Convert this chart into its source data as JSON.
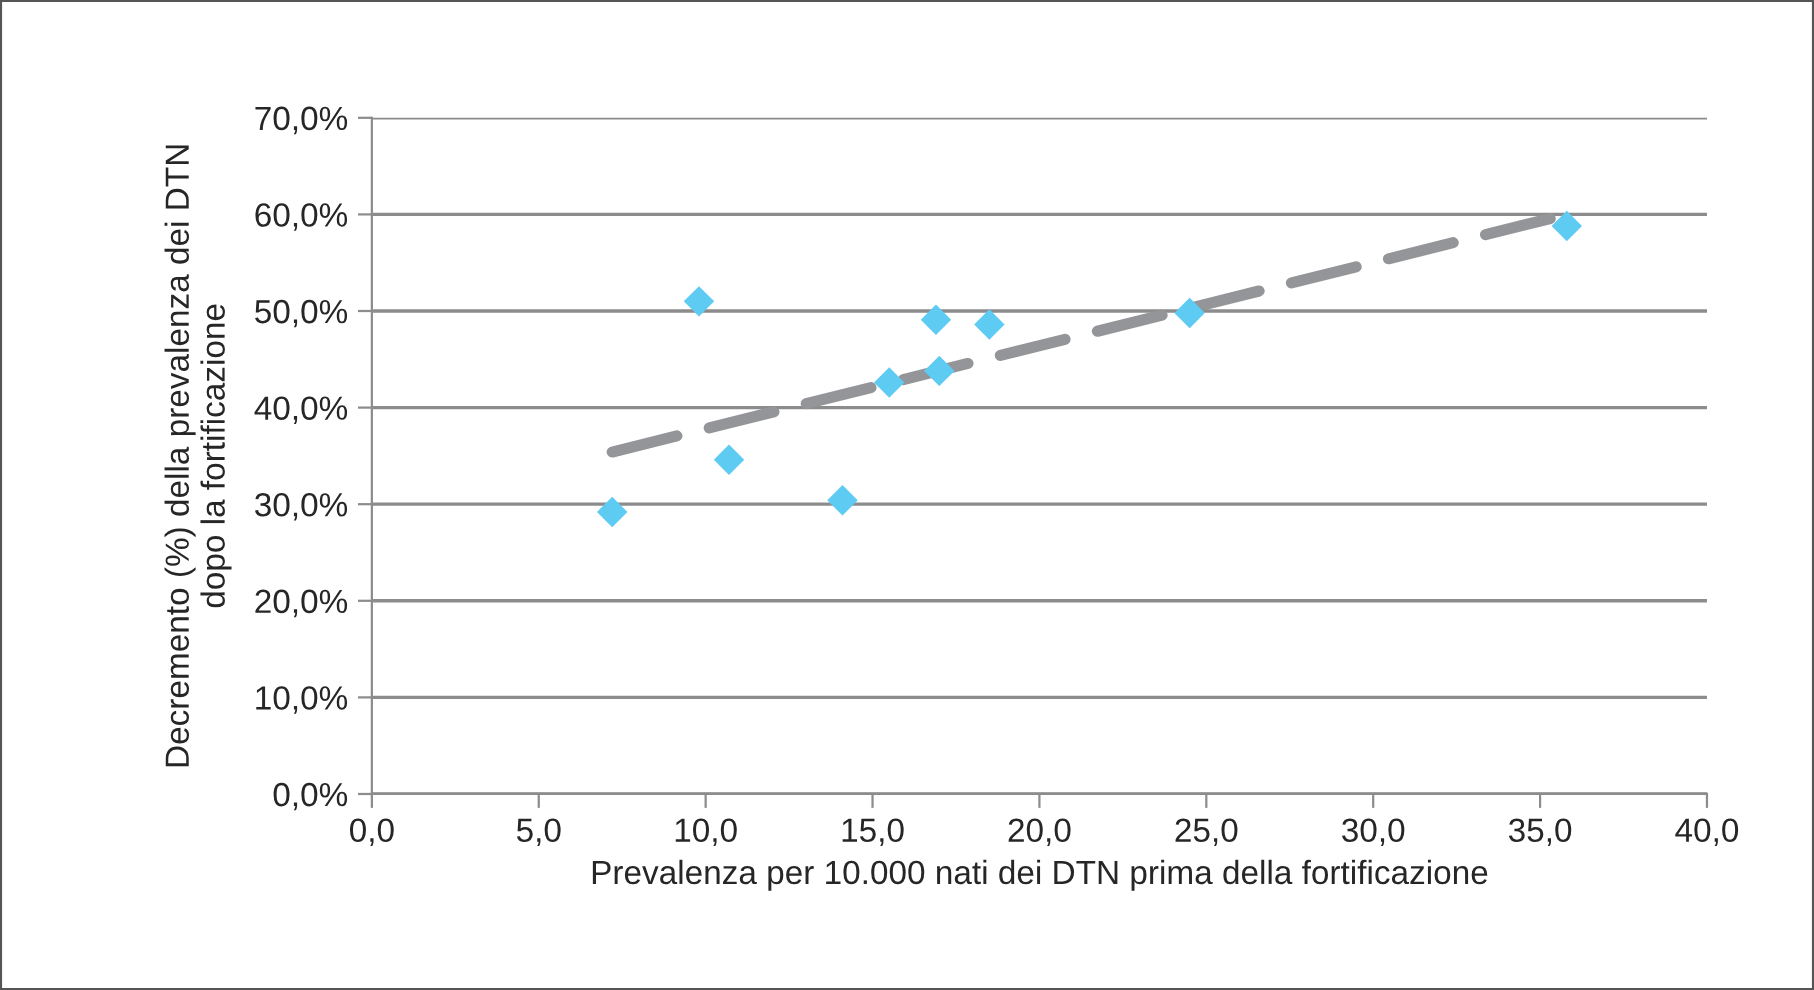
{
  "chart_data": {
    "type": "scatter",
    "xlabel": "Prevalenza per 10.000 nati dei DTN prima della fortificazione",
    "ylabel": "Decremento (%) della prevalenza dei DTN\ndopo la fortificazione",
    "series": [
      {
        "color": "#5ecbf3",
        "marker": "diamond",
        "x": [
          7.2,
          9.8,
          10.7,
          14.1,
          15.5,
          16.9,
          17.0,
          18.5,
          24.5,
          35.8
        ],
        "values": [
          29.2,
          51.0,
          34.6,
          30.4,
          42.6,
          49.1,
          43.8,
          48.6,
          49.8,
          58.8
        ]
      },
      {
        "type": "line",
        "color": "#939598",
        "line_style": "dashed",
        "marker": "none",
        "x": [
          7.2,
          35.8
        ],
        "values": [
          35.4,
          60.0
        ]
      }
    ],
    "xlim": [
      0,
      40
    ],
    "xticks": [
      {
        "value": 0,
        "label": "0,0"
      },
      {
        "value": 5,
        "label": "5,0"
      },
      {
        "value": 10,
        "label": "10,0"
      },
      {
        "value": 15,
        "label": "15,0"
      },
      {
        "value": 20,
        "label": "20,0"
      },
      {
        "value": 25,
        "label": "25,0"
      },
      {
        "value": 30,
        "label": "30,0"
      },
      {
        "value": 35,
        "label": "35,0"
      },
      {
        "value": 40,
        "label": "40,0"
      }
    ],
    "ylim": [
      0,
      70
    ],
    "yticks": [
      {
        "value": 0,
        "label": "0,0%"
      },
      {
        "value": 10,
        "label": "10,0%"
      },
      {
        "value": 20,
        "label": "20,0%"
      },
      {
        "value": 30,
        "label": "30,0%"
      },
      {
        "value": 40,
        "label": "40,0%"
      },
      {
        "value": 50,
        "label": "50,0%"
      },
      {
        "value": 60,
        "label": "60,0%"
      },
      {
        "value": 70,
        "label": "70,0%"
      }
    ],
    "grid": "y",
    "legend": false
  }
}
